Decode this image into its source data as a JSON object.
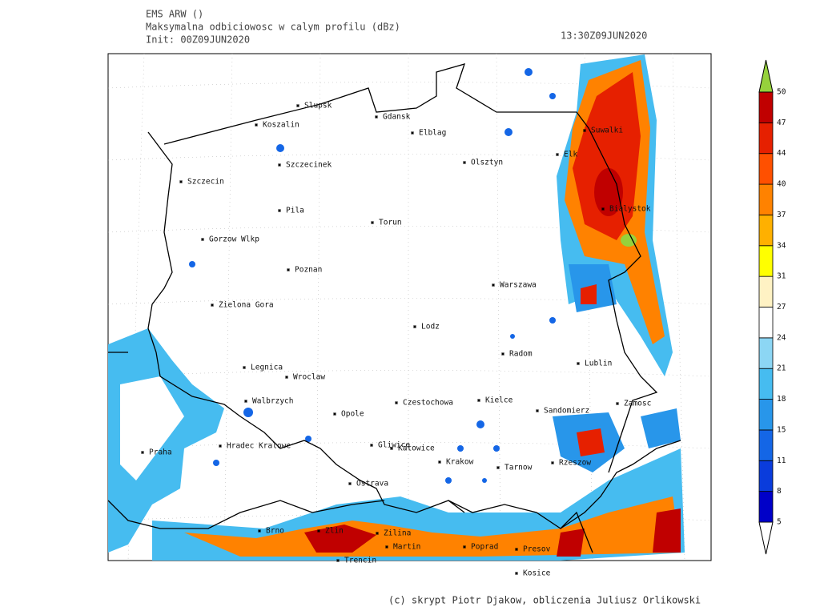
{
  "header": {
    "model": "EMS ARW ()",
    "product": "Maksymalna odbiciowosc w calym profilu (dBz)",
    "init": "Init: 00Z09JUN2020",
    "valid": "13:30Z09JUN2020"
  },
  "cities": [
    "Slupsk",
    "Koszalin",
    "Gdansk",
    "Elblag",
    "Szczecinek",
    "Olsztyn",
    "Elk",
    "Suwalki",
    "Szczecin",
    "Pila",
    "Torun",
    "Bialystok",
    "Gorzow Wlkp",
    "Poznan",
    "Warszawa",
    "Zielona Gora",
    "Lodz",
    "Radom",
    "Lublin",
    "Legnica",
    "Wroclaw",
    "Walbrzych",
    "Czestochowa",
    "Kielce",
    "Opole",
    "Sandomierz",
    "Zamosc",
    "Hradec Kralowe",
    "Gliwice",
    "Katowice",
    "Praha",
    "Krakow",
    "Tarnow",
    "Rzeszow",
    "Ostrava",
    "Brno",
    "Zlin",
    "Zilina",
    "Martin",
    "Poprad",
    "Presov",
    "Trencin",
    "Kosice"
  ],
  "colorbar": {
    "levels": [
      5,
      8,
      11,
      15,
      18,
      21,
      24,
      27,
      31,
      34,
      37,
      40,
      44,
      47,
      50
    ],
    "colors": [
      "#ffffff",
      "#0000c8",
      "#0a3cdc",
      "#1466e6",
      "#2896ea",
      "#46bcf0",
      "#8cd6f4",
      "#ffffff",
      "#fff2c4",
      "#ffff00",
      "#ffb000",
      "#ff8200",
      "#ff5000",
      "#e62000",
      "#c00000",
      "#96d23c"
    ]
  },
  "footer": "(c) skrypt Piotr Djakow, obliczenia Juliusz Orlikowski"
}
